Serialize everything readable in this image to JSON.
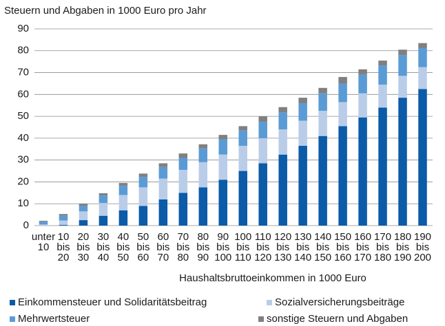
{
  "chart_data": {
    "type": "stacked_bar",
    "title": "Steuern und Abgaben in 1000 Euro pro Jahr",
    "x_label": "Haushaltsbruttoeinkommen in 1000 Euro",
    "categories": [
      [
        "unter",
        "10"
      ],
      [
        "10",
        "bis",
        "20"
      ],
      [
        "20",
        "bis",
        "30"
      ],
      [
        "30",
        "bis",
        "40"
      ],
      [
        "40",
        "bis",
        "50"
      ],
      [
        "50",
        "bis",
        "60"
      ],
      [
        "60",
        "bis",
        "70"
      ],
      [
        "70",
        "bis",
        "80"
      ],
      [
        "80",
        "bis",
        "90"
      ],
      [
        "90",
        "bis",
        "100"
      ],
      [
        "100",
        "bis",
        "110"
      ],
      [
        "110",
        "bis",
        "120"
      ],
      [
        "120",
        "bis",
        "130"
      ],
      [
        "130",
        "bis",
        "140"
      ],
      [
        "140",
        "bis",
        "150"
      ],
      [
        "150",
        "bis",
        "160"
      ],
      [
        "160",
        "bis",
        "170"
      ],
      [
        "170",
        "bis",
        "180"
      ],
      [
        "180",
        "bis",
        "190"
      ],
      [
        "190",
        "bis",
        "200"
      ]
    ],
    "series": [
      {
        "name": "Einkommensteuer und Solidaritätsbeitrag",
        "color": "#0b5ba8",
        "values": [
          0,
          0.3,
          2.5,
          4.5,
          7,
          9,
          12,
          15,
          17.5,
          21,
          25,
          28.5,
          32.5,
          36.5,
          41,
          45.5,
          49.5,
          54,
          58.5,
          62.5
        ]
      },
      {
        "name": "Sozialversicherungsbeiträge",
        "color": "#b9cde9",
        "values": [
          0.5,
          2,
          4,
          5.8,
          7,
          8.5,
          9.5,
          10.5,
          11.5,
          11.5,
          11.5,
          11.5,
          11.5,
          11.5,
          11.5,
          11,
          11,
          10.5,
          10,
          10
        ]
      },
      {
        "name": "Mehrwertsteuer",
        "color": "#5a9bd6",
        "values": [
          1.3,
          2.2,
          2.5,
          3.5,
          4.2,
          4.8,
          5.3,
          5.5,
          6.3,
          7,
          7,
          7.5,
          7.8,
          8,
          8,
          8.5,
          8.5,
          8.8,
          9.5,
          8.7
        ]
      },
      {
        "name": "sonstige Steuern und Abgaben",
        "color": "#808080",
        "values": [
          0.4,
          0.8,
          1,
          1,
          1.3,
          1.5,
          1.7,
          2,
          1.9,
          2,
          2,
          2.5,
          2.4,
          2.5,
          2.5,
          3,
          2.5,
          2.2,
          2.5,
          2.3
        ]
      }
    ],
    "ylim": [
      0,
      90
    ],
    "yticks": [
      0,
      10,
      20,
      30,
      40,
      50,
      60,
      70,
      80,
      90
    ],
    "grid": true
  }
}
